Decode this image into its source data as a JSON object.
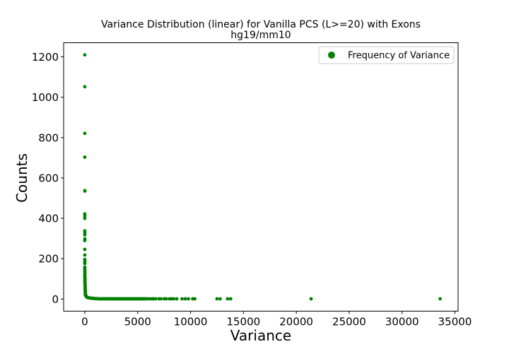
{
  "chart_data": {
    "type": "scatter",
    "title": "Variance Distribution (linear) for Vanilla PCS (L>=20) with Exons",
    "subtitle": "hg19/mm10",
    "xlabel": "Variance",
    "ylabel": "Counts",
    "xlim": [
      -2000,
      35300
    ],
    "ylim": [
      -60,
      1270
    ],
    "xticks": [
      0,
      5000,
      10000,
      15000,
      20000,
      25000,
      30000,
      35000
    ],
    "yticks": [
      0,
      200,
      400,
      600,
      800,
      1000,
      1200
    ],
    "grid": false,
    "legend": {
      "position": "top-right",
      "entries": [
        "Frequency of Variance"
      ]
    },
    "colors": {
      "series": "#008000"
    },
    "series": [
      {
        "name": "Frequency of Variance",
        "points": [
          [
            0,
            1210
          ],
          [
            0,
            1052
          ],
          [
            0,
            821
          ],
          [
            0,
            703
          ],
          [
            5,
            537
          ],
          [
            10,
            535
          ],
          [
            0,
            422
          ],
          [
            5,
            412
          ],
          [
            0,
            400
          ],
          [
            0,
            338
          ],
          [
            5,
            328
          ],
          [
            0,
            318
          ],
          [
            10,
            298
          ],
          [
            0,
            290
          ],
          [
            0,
            246
          ],
          [
            5,
            218
          ],
          [
            0,
            196
          ],
          [
            10,
            190
          ],
          [
            0,
            182
          ],
          [
            5,
            176
          ],
          [
            0,
            158
          ],
          [
            10,
            152
          ],
          [
            0,
            146
          ],
          [
            15,
            140
          ],
          [
            0,
            134
          ],
          [
            20,
            128
          ],
          [
            5,
            120
          ],
          [
            0,
            112
          ],
          [
            25,
            106
          ],
          [
            10,
            100
          ],
          [
            30,
            94
          ],
          [
            0,
            88
          ],
          [
            35,
            82
          ],
          [
            15,
            76
          ],
          [
            40,
            70
          ],
          [
            20,
            64
          ],
          [
            50,
            58
          ],
          [
            25,
            52
          ],
          [
            60,
            46
          ],
          [
            30,
            40
          ],
          [
            70,
            34
          ],
          [
            40,
            28
          ],
          [
            80,
            22
          ],
          [
            50,
            20
          ],
          [
            100,
            16
          ],
          [
            120,
            14
          ],
          [
            150,
            12
          ],
          [
            180,
            10
          ],
          [
            210,
            9
          ],
          [
            250,
            8
          ],
          [
            300,
            7
          ],
          [
            350,
            6
          ],
          [
            400,
            6
          ],
          [
            450,
            5
          ],
          [
            500,
            5
          ],
          [
            600,
            4
          ],
          [
            700,
            4
          ],
          [
            800,
            3
          ],
          [
            900,
            3
          ],
          [
            1000,
            2
          ],
          [
            1100,
            2
          ],
          [
            1200,
            2
          ],
          [
            1300,
            1
          ],
          [
            1400,
            1
          ],
          [
            1500,
            1
          ],
          [
            1600,
            1
          ],
          [
            1700,
            1
          ],
          [
            1800,
            1
          ],
          [
            1900,
            1
          ],
          [
            2000,
            1
          ],
          [
            2100,
            1
          ],
          [
            2200,
            1
          ],
          [
            2300,
            1
          ],
          [
            2400,
            1
          ],
          [
            2500,
            1
          ],
          [
            2600,
            1
          ],
          [
            2700,
            1
          ],
          [
            2800,
            1
          ],
          [
            2900,
            1
          ],
          [
            3000,
            1
          ],
          [
            3100,
            1
          ],
          [
            3200,
            1
          ],
          [
            3300,
            1
          ],
          [
            3400,
            1
          ],
          [
            3500,
            1
          ],
          [
            3600,
            1
          ],
          [
            3700,
            1
          ],
          [
            3800,
            1
          ],
          [
            3900,
            1
          ],
          [
            4000,
            1
          ],
          [
            4100,
            1
          ],
          [
            4200,
            1
          ],
          [
            4300,
            1
          ],
          [
            4400,
            1
          ],
          [
            4500,
            1
          ],
          [
            4600,
            1
          ],
          [
            4700,
            1
          ],
          [
            4800,
            1
          ],
          [
            4900,
            1
          ],
          [
            5000,
            1
          ],
          [
            5100,
            1
          ],
          [
            5200,
            1
          ],
          [
            5300,
            1
          ],
          [
            5400,
            1
          ],
          [
            5500,
            1
          ],
          [
            5600,
            1
          ],
          [
            5700,
            1
          ],
          [
            5800,
            1
          ],
          [
            6000,
            1
          ],
          [
            6200,
            1
          ],
          [
            6400,
            1
          ],
          [
            6500,
            1
          ],
          [
            6700,
            1
          ],
          [
            7000,
            1
          ],
          [
            7200,
            1
          ],
          [
            7500,
            1
          ],
          [
            7700,
            1
          ],
          [
            8000,
            1
          ],
          [
            8200,
            1
          ],
          [
            8400,
            1
          ],
          [
            8700,
            1
          ],
          [
            9200,
            1
          ],
          [
            9500,
            1
          ],
          [
            9800,
            1
          ],
          [
            10200,
            1
          ],
          [
            10400,
            1
          ],
          [
            12500,
            1
          ],
          [
            12800,
            1
          ],
          [
            13500,
            1
          ],
          [
            13800,
            1
          ],
          [
            21400,
            1
          ],
          [
            33600,
            1
          ]
        ]
      }
    ]
  }
}
